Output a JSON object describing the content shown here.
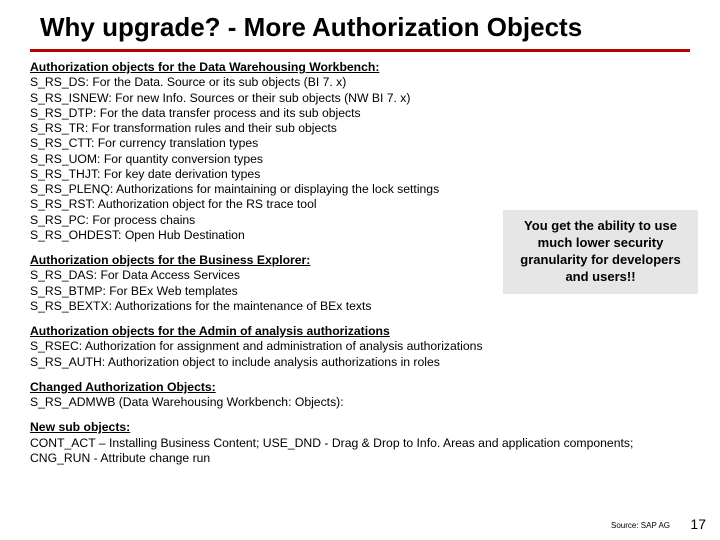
{
  "title": "Why upgrade? - More Authorization Objects",
  "callout": "You get the ability to use much lower security granularity for developers and users!!",
  "source": "Source: SAP AG",
  "page_number": "17",
  "sec1_head": "Authorization objects for the Data Warehousing Workbench:",
  "sec1": {
    "l1": "S_RS_DS: For the Data. Source or its sub objects (BI 7. x)",
    "l2": "S_RS_ISNEW: For new Info. Sources or their sub objects (NW BI 7. x)",
    "l3": "S_RS_DTP: For the data transfer process and its sub objects",
    "l4": "S_RS_TR: For transformation rules and their sub objects",
    "l5": "S_RS_CTT: For currency translation types",
    "l6": "S_RS_UOM: For quantity conversion types",
    "l7": "S_RS_THJT: For key date derivation types",
    "l8": "S_RS_PLENQ: Authorizations for maintaining or displaying the lock settings",
    "l9": "S_RS_RST: Authorization object for the RS trace tool",
    "l10": "S_RS_PC: For process chains",
    "l11": "S_RS_OHDEST: Open Hub Destination"
  },
  "sec2_head": "Authorization objects for the Business Explorer:",
  "sec2": {
    "l1": "S_RS_DAS: For Data Access Services",
    "l2": "S_RS_BTMP: For BEx Web templates",
    "l3": "S_RS_BEXTX: Authorizations for the maintenance of BEx texts"
  },
  "sec3_head": "Authorization objects for the Admin of analysis authorizations",
  "sec3": {
    "l1": "S_RSEC: Authorization for assignment and administration of analysis authorizations",
    "l2": "S_RS_AUTH: Authorization object to include analysis authorizations in roles"
  },
  "sec4_head": "Changed Authorization Objects:",
  "sec4": {
    "l1": "S_RS_ADMWB (Data Warehousing Workbench: Objects):"
  },
  "sec5_head": "New sub objects:",
  "sec5": {
    "l1": "CONT_ACT – Installing Business Content; USE_DND - Drag & Drop to Info. Areas and application components; CNG_RUN - Attribute change run"
  }
}
